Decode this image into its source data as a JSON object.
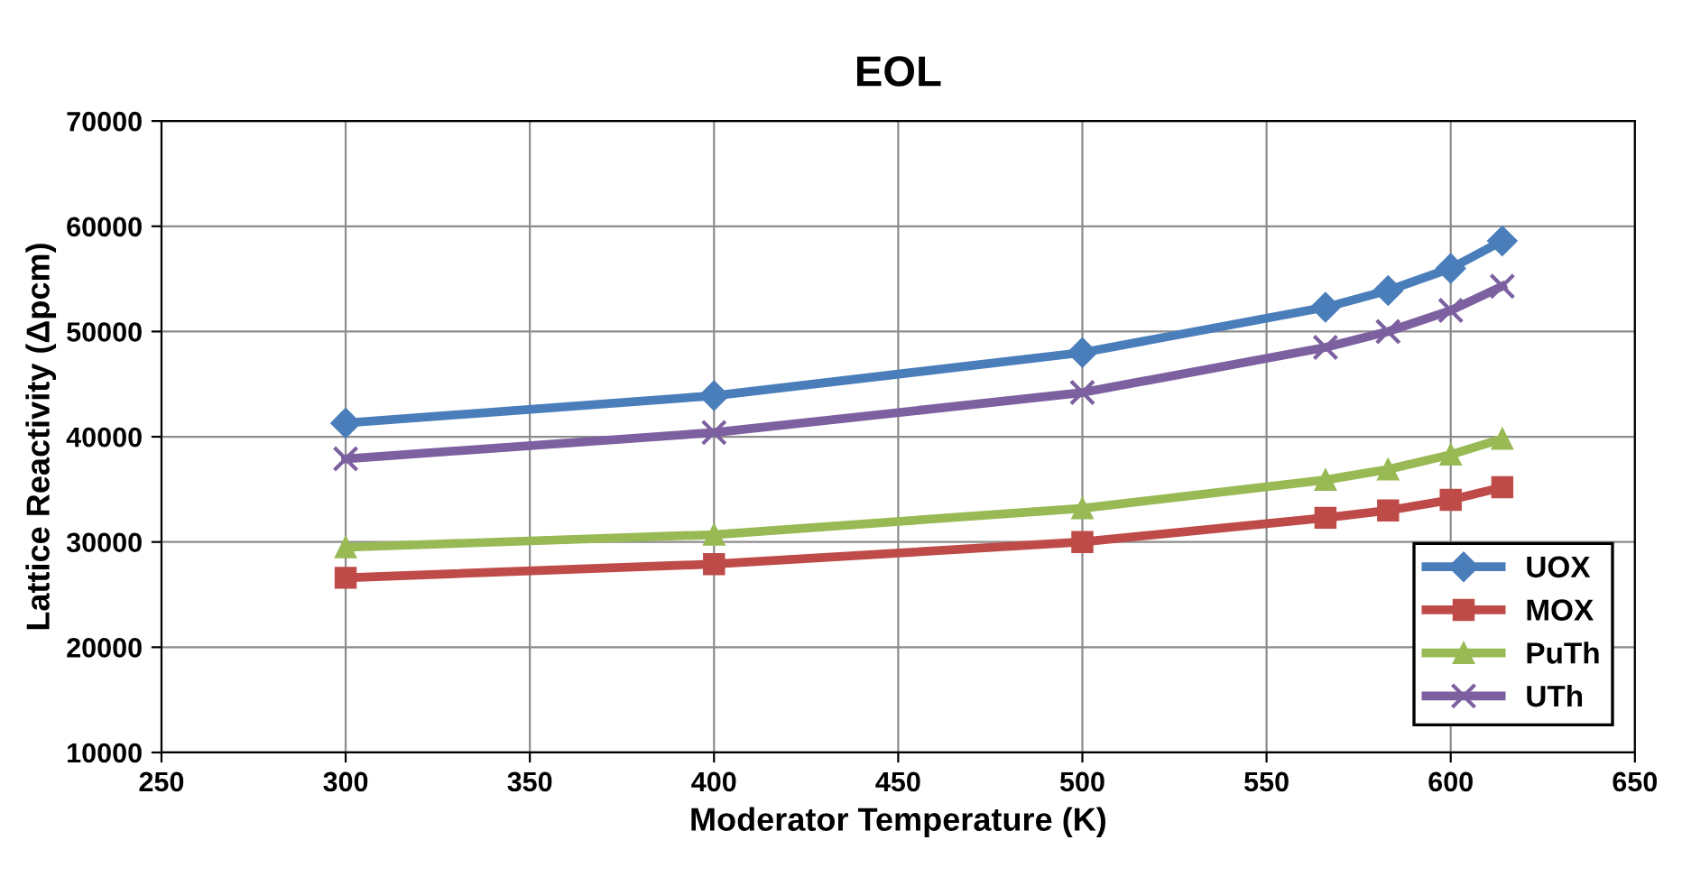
{
  "chart_data": {
    "type": "line",
    "title": "EOL",
    "xlabel": "Moderator Temperature (K)",
    "ylabel": "Lattice Reactivity (Δpcm)",
    "x": [
      300,
      400,
      500,
      566,
      583,
      600,
      614
    ],
    "series": [
      {
        "name": "UOX",
        "color": "#4a7ebb",
        "marker": "diamond",
        "values": [
          41300,
          43900,
          48000,
          52300,
          53900,
          56000,
          58600
        ]
      },
      {
        "name": "MOX",
        "color": "#be4b48",
        "marker": "square",
        "values": [
          26600,
          27900,
          30000,
          32300,
          33000,
          34000,
          35200
        ]
      },
      {
        "name": "PuTh",
        "color": "#98b954",
        "marker": "triangle",
        "values": [
          29500,
          30700,
          33200,
          35900,
          36900,
          38300,
          39800
        ]
      },
      {
        "name": "UTh",
        "color": "#7d60a0",
        "marker": "cross",
        "values": [
          37900,
          40400,
          44200,
          48500,
          50000,
          52000,
          54300
        ]
      }
    ],
    "xlim": [
      250,
      650
    ],
    "xticks": [
      250,
      300,
      350,
      400,
      450,
      500,
      550,
      600,
      650
    ],
    "ylim": [
      10000,
      70000
    ],
    "yticks": [
      10000,
      20000,
      30000,
      40000,
      50000,
      60000,
      70000
    ],
    "grid": true,
    "legend": "right",
    "line_style": "solid"
  }
}
